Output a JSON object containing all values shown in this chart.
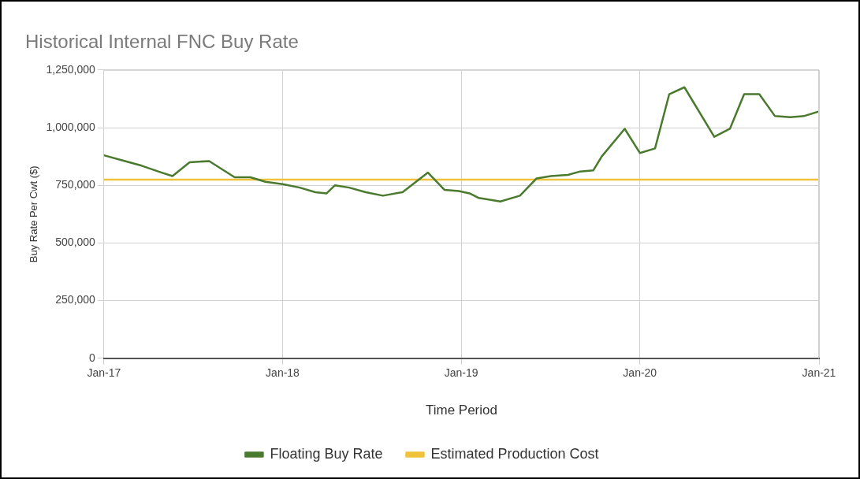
{
  "chart_data": {
    "type": "line",
    "title": "Historical Internal FNC Buy Rate",
    "xlabel": "Time Period",
    "ylabel": "Buy Rate Per Cwt ($)",
    "legend": "bottom",
    "grid": true,
    "marker": "none",
    "line_style": "solid",
    "xlim": [
      "2017-01-01",
      "2021-01-01"
    ],
    "xticks": [
      {
        "value": "2017-01-01",
        "label": "Jan-17"
      },
      {
        "value": "2018-01-01",
        "label": "Jan-18"
      },
      {
        "value": "2019-01-01",
        "label": "Jan-19"
      },
      {
        "value": "2020-01-01",
        "label": "Jan-20"
      },
      {
        "value": "2021-01-01",
        "label": "Jan-21"
      }
    ],
    "ylim": [
      0,
      1250000
    ],
    "yticks": [
      {
        "value": 0,
        "label": "0"
      },
      {
        "value": 250000,
        "label": "250,000"
      },
      {
        "value": 500000,
        "label": "500,000"
      },
      {
        "value": 750000,
        "label": "750,000"
      },
      {
        "value": 1000000,
        "label": "1,000,000"
      },
      {
        "value": 1250000,
        "label": "1,250,000"
      }
    ],
    "series": [
      {
        "name": "Floating Buy Rate",
        "color": "#4a7a2e",
        "x": [
          "2017-01-01",
          "2017-02-13",
          "2017-03-19",
          "2017-04-29",
          "2017-05-21",
          "2017-06-25",
          "2017-08-04",
          "2017-09-25",
          "2017-10-27",
          "2017-11-27",
          "2018-01-01",
          "2018-02-05",
          "2018-03-09",
          "2018-04-01",
          "2018-04-18",
          "2018-05-17",
          "2018-06-20",
          "2018-07-25",
          "2018-09-03",
          "2018-10-25",
          "2018-11-28",
          "2018-12-27",
          "2019-01-18",
          "2019-02-06",
          "2019-03-22",
          "2019-05-01",
          "2019-06-04",
          "2019-07-03",
          "2019-08-07",
          "2019-09-01",
          "2019-09-28",
          "2019-10-15",
          "2019-12-01",
          "2020-01-01",
          "2020-02-01",
          "2020-03-01",
          "2020-04-01",
          "2020-06-01",
          "2020-07-03",
          "2020-08-01",
          "2020-09-01",
          "2020-10-03",
          "2020-11-03",
          "2020-12-01",
          "2021-01-01"
        ],
        "values": [
          880000,
          855000,
          835000,
          805000,
          790000,
          850000,
          855000,
          785000,
          785000,
          765000,
          755000,
          740000,
          720000,
          715000,
          750000,
          740000,
          720000,
          705000,
          720000,
          805000,
          730000,
          725000,
          715000,
          695000,
          680000,
          705000,
          780000,
          790000,
          795000,
          810000,
          815000,
          875000,
          995000,
          890000,
          910000,
          1145000,
          1175000,
          960000,
          995000,
          1145000,
          1145000,
          1050000,
          1045000,
          1050000,
          1070000
        ]
      },
      {
        "name": "Estimated Production Cost",
        "color": "#f0c23a",
        "x": [
          "2017-01-01",
          "2021-01-01"
        ],
        "values": [
          775000,
          775000
        ]
      }
    ]
  }
}
